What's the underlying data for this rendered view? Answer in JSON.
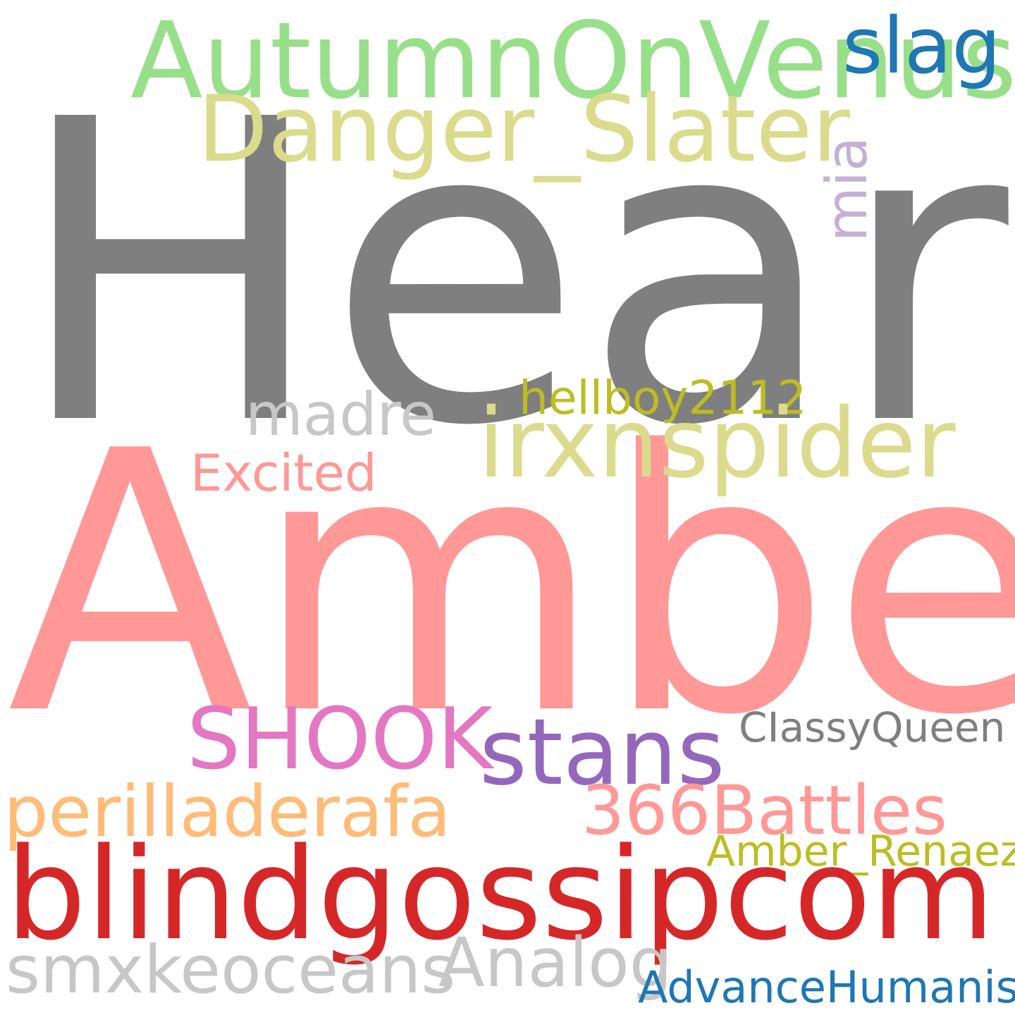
{
  "words": [
    {
      "key": "heard",
      "text": "Heard",
      "color": "#7f7f7f"
    },
    {
      "key": "amber",
      "text": "Amber",
      "color": "#ff9896"
    },
    {
      "key": "autumn",
      "text": "AutumnOnVenus",
      "color": "#98df8a"
    },
    {
      "key": "slag",
      "text": "slag",
      "color": "#1f77b4"
    },
    {
      "key": "danger",
      "text": "Danger_Slater",
      "color": "#dbdb8d"
    },
    {
      "key": "mia",
      "text": "mia",
      "color": "#c5b0d5"
    },
    {
      "key": "hellboy",
      "text": "hellboy2112",
      "color": "#bcbd22"
    },
    {
      "key": "madre",
      "text": "madre",
      "color": "#c7c7c7"
    },
    {
      "key": "irx",
      "text": "irxnspider",
      "color": "#dbdb8d"
    },
    {
      "key": "excited",
      "text": "Excited",
      "color": "#ff9896"
    },
    {
      "key": "shook",
      "text": "SHOOK",
      "color": "#e377c2"
    },
    {
      "key": "stans",
      "text": "stans",
      "color": "#9467bd"
    },
    {
      "key": "classy",
      "text": "CIassyQueen",
      "color": "#7f7f7f"
    },
    {
      "key": "peril",
      "text": "perilladerafa",
      "color": "#ffbb78"
    },
    {
      "key": "battles",
      "text": "366Battles",
      "color": "#ff9896"
    },
    {
      "key": "amberr",
      "text": "Amber_Renaez",
      "color": "#bcbd22"
    },
    {
      "key": "blind",
      "text": "blindgossipcom",
      "color": "#d62728"
    },
    {
      "key": "smx",
      "text": "smxkeoceans",
      "color": "#c7c7c7"
    },
    {
      "key": "analog",
      "text": "Analog",
      "color": "#c7c7c7"
    },
    {
      "key": "advance",
      "text": "AdvanceHumanism",
      "color": "#1f77b4"
    }
  ]
}
